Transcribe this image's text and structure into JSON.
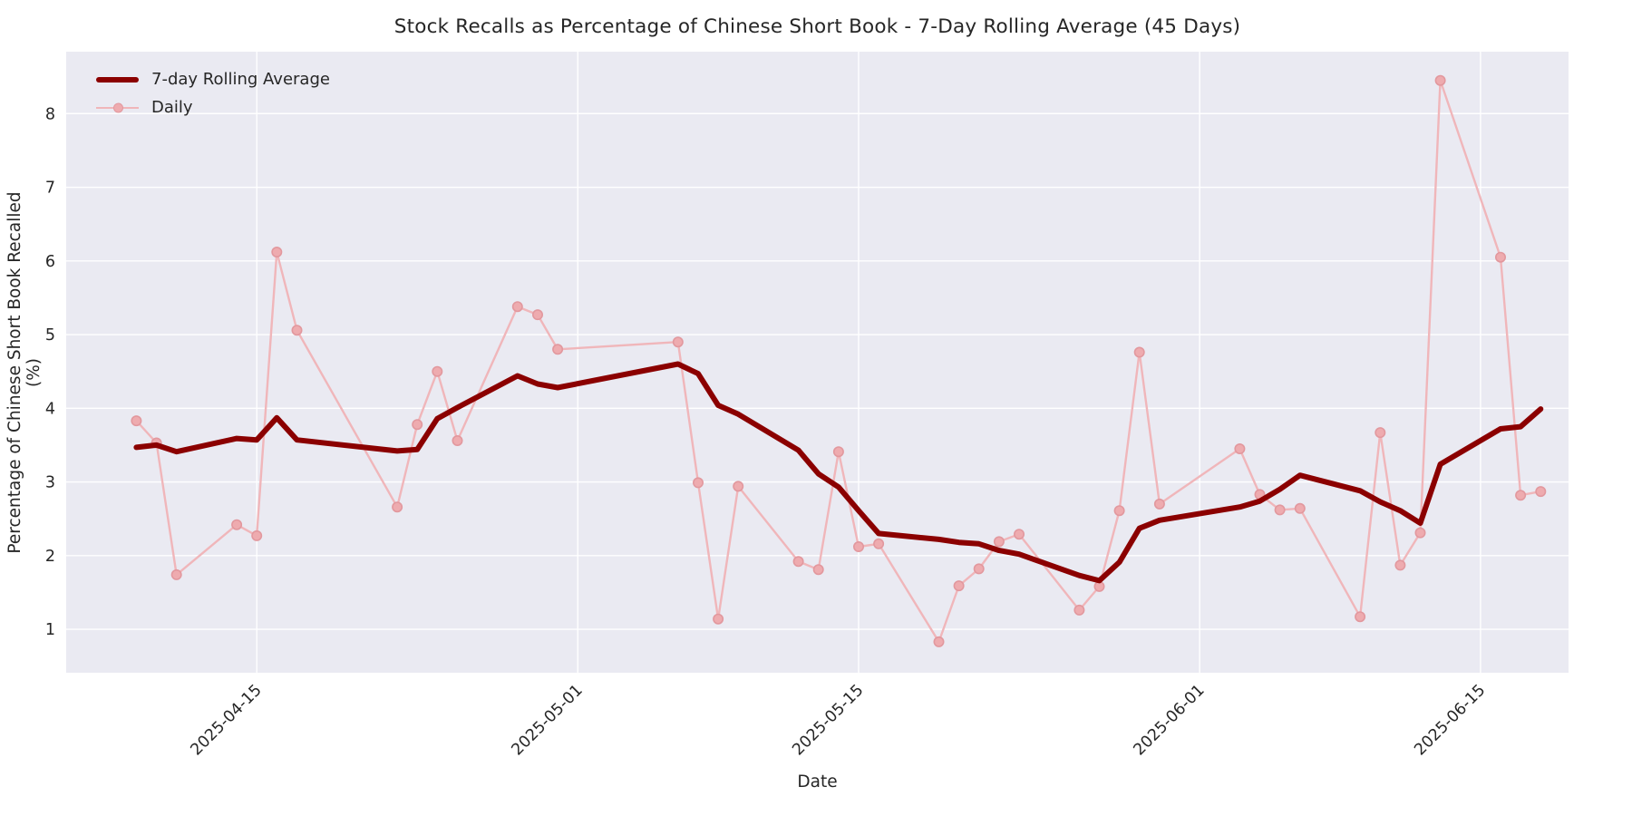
{
  "title": "Stock Recalls as Percentage of Chinese Short Book - 7-Day Rolling Average (45 Days)",
  "legend": {
    "items": [
      {
        "label": "7-day Rolling Average",
        "series": "rolling"
      },
      {
        "label": "Daily",
        "series": "daily"
      }
    ]
  },
  "x_axis": {
    "label": "Date",
    "tick_labels": [
      "2025-04-15",
      "2025-05-01",
      "2025-05-15",
      "2025-06-01",
      "2025-06-15"
    ]
  },
  "y_axis": {
    "label": "Percentage of Chinese Short Book Recalled (%)",
    "tick_labels": [
      1,
      2,
      3,
      4,
      5,
      6,
      7,
      8
    ]
  },
  "colors": {
    "figure_bg": "#ffffff",
    "axes_bg": "#eaeaf2",
    "grid": "#ffffff",
    "text": "#262626",
    "rolling": "#8b0000",
    "daily_line": "#f0b6ba",
    "daily_marker_fill": "#eeabaf",
    "daily_marker_edge": "#e2989e"
  },
  "chart_data": {
    "type": "line",
    "title": "Stock Recalls as Percentage of Chinese Short Book - 7-Day Rolling Average (45 Days)",
    "xlabel": "Date",
    "ylabel": "Percentage of Chinese Short Book Recalled (%)",
    "grid": true,
    "legend_position": "upper left",
    "x": [
      "2025-04-09",
      "2025-04-10",
      "2025-04-11",
      "2025-04-14",
      "2025-04-15",
      "2025-04-16",
      "2025-04-17",
      "2025-04-22",
      "2025-04-23",
      "2025-04-24",
      "2025-04-25",
      "2025-04-28",
      "2025-04-29",
      "2025-04-30",
      "2025-05-06",
      "2025-05-07",
      "2025-05-08",
      "2025-05-09",
      "2025-05-12",
      "2025-05-13",
      "2025-05-14",
      "2025-05-15",
      "2025-05-16",
      "2025-05-19",
      "2025-05-20",
      "2025-05-21",
      "2025-05-22",
      "2025-05-23",
      "2025-05-26",
      "2025-05-27",
      "2025-05-28",
      "2025-05-29",
      "2025-05-30",
      "2025-06-03",
      "2025-06-04",
      "2025-06-05",
      "2025-06-06",
      "2025-06-09",
      "2025-06-10",
      "2025-06-11",
      "2025-06-12",
      "2025-06-13",
      "2025-06-16",
      "2025-06-17",
      "2025-06-18"
    ],
    "series": [
      {
        "name": "7-day Rolling Average",
        "values": [
          3.47,
          3.5,
          3.41,
          3.59,
          3.57,
          3.87,
          3.57,
          3.42,
          3.44,
          3.86,
          4.01,
          4.44,
          4.33,
          4.28,
          4.6,
          4.47,
          4.04,
          3.92,
          3.43,
          3.11,
          2.93,
          2.61,
          2.3,
          2.22,
          2.18,
          2.16,
          2.07,
          2.02,
          1.73,
          1.66,
          1.91,
          2.37,
          2.48,
          2.66,
          2.74,
          2.9,
          3.09,
          2.88,
          2.73,
          2.61,
          2.44,
          3.24,
          3.72,
          3.75,
          3.99
        ]
      },
      {
        "name": "Daily",
        "values": [
          3.83,
          3.53,
          1.74,
          2.42,
          2.27,
          6.12,
          5.06,
          2.66,
          3.78,
          4.5,
          3.56,
          5.38,
          5.27,
          4.8,
          4.9,
          2.99,
          1.14,
          2.94,
          1.92,
          1.81,
          3.41,
          2.12,
          2.16,
          0.83,
          1.59,
          1.82,
          2.19,
          2.29,
          1.26,
          1.58,
          2.61,
          4.76,
          2.7,
          3.45,
          2.83,
          2.62,
          2.64,
          1.17,
          3.67,
          1.87,
          2.31,
          8.45,
          6.05,
          2.82,
          2.87
        ]
      }
    ],
    "xlim": [
      "2025-04-05T12:00:00Z",
      "2025-06-19T09:20:00Z"
    ],
    "ylim": [
      0.41,
      8.84
    ],
    "x_ticks": [
      "2025-04-15",
      "2025-05-01",
      "2025-05-15",
      "2025-06-01",
      "2025-06-15"
    ],
    "y_ticks": [
      1,
      2,
      3,
      4,
      5,
      6,
      7,
      8
    ]
  }
}
